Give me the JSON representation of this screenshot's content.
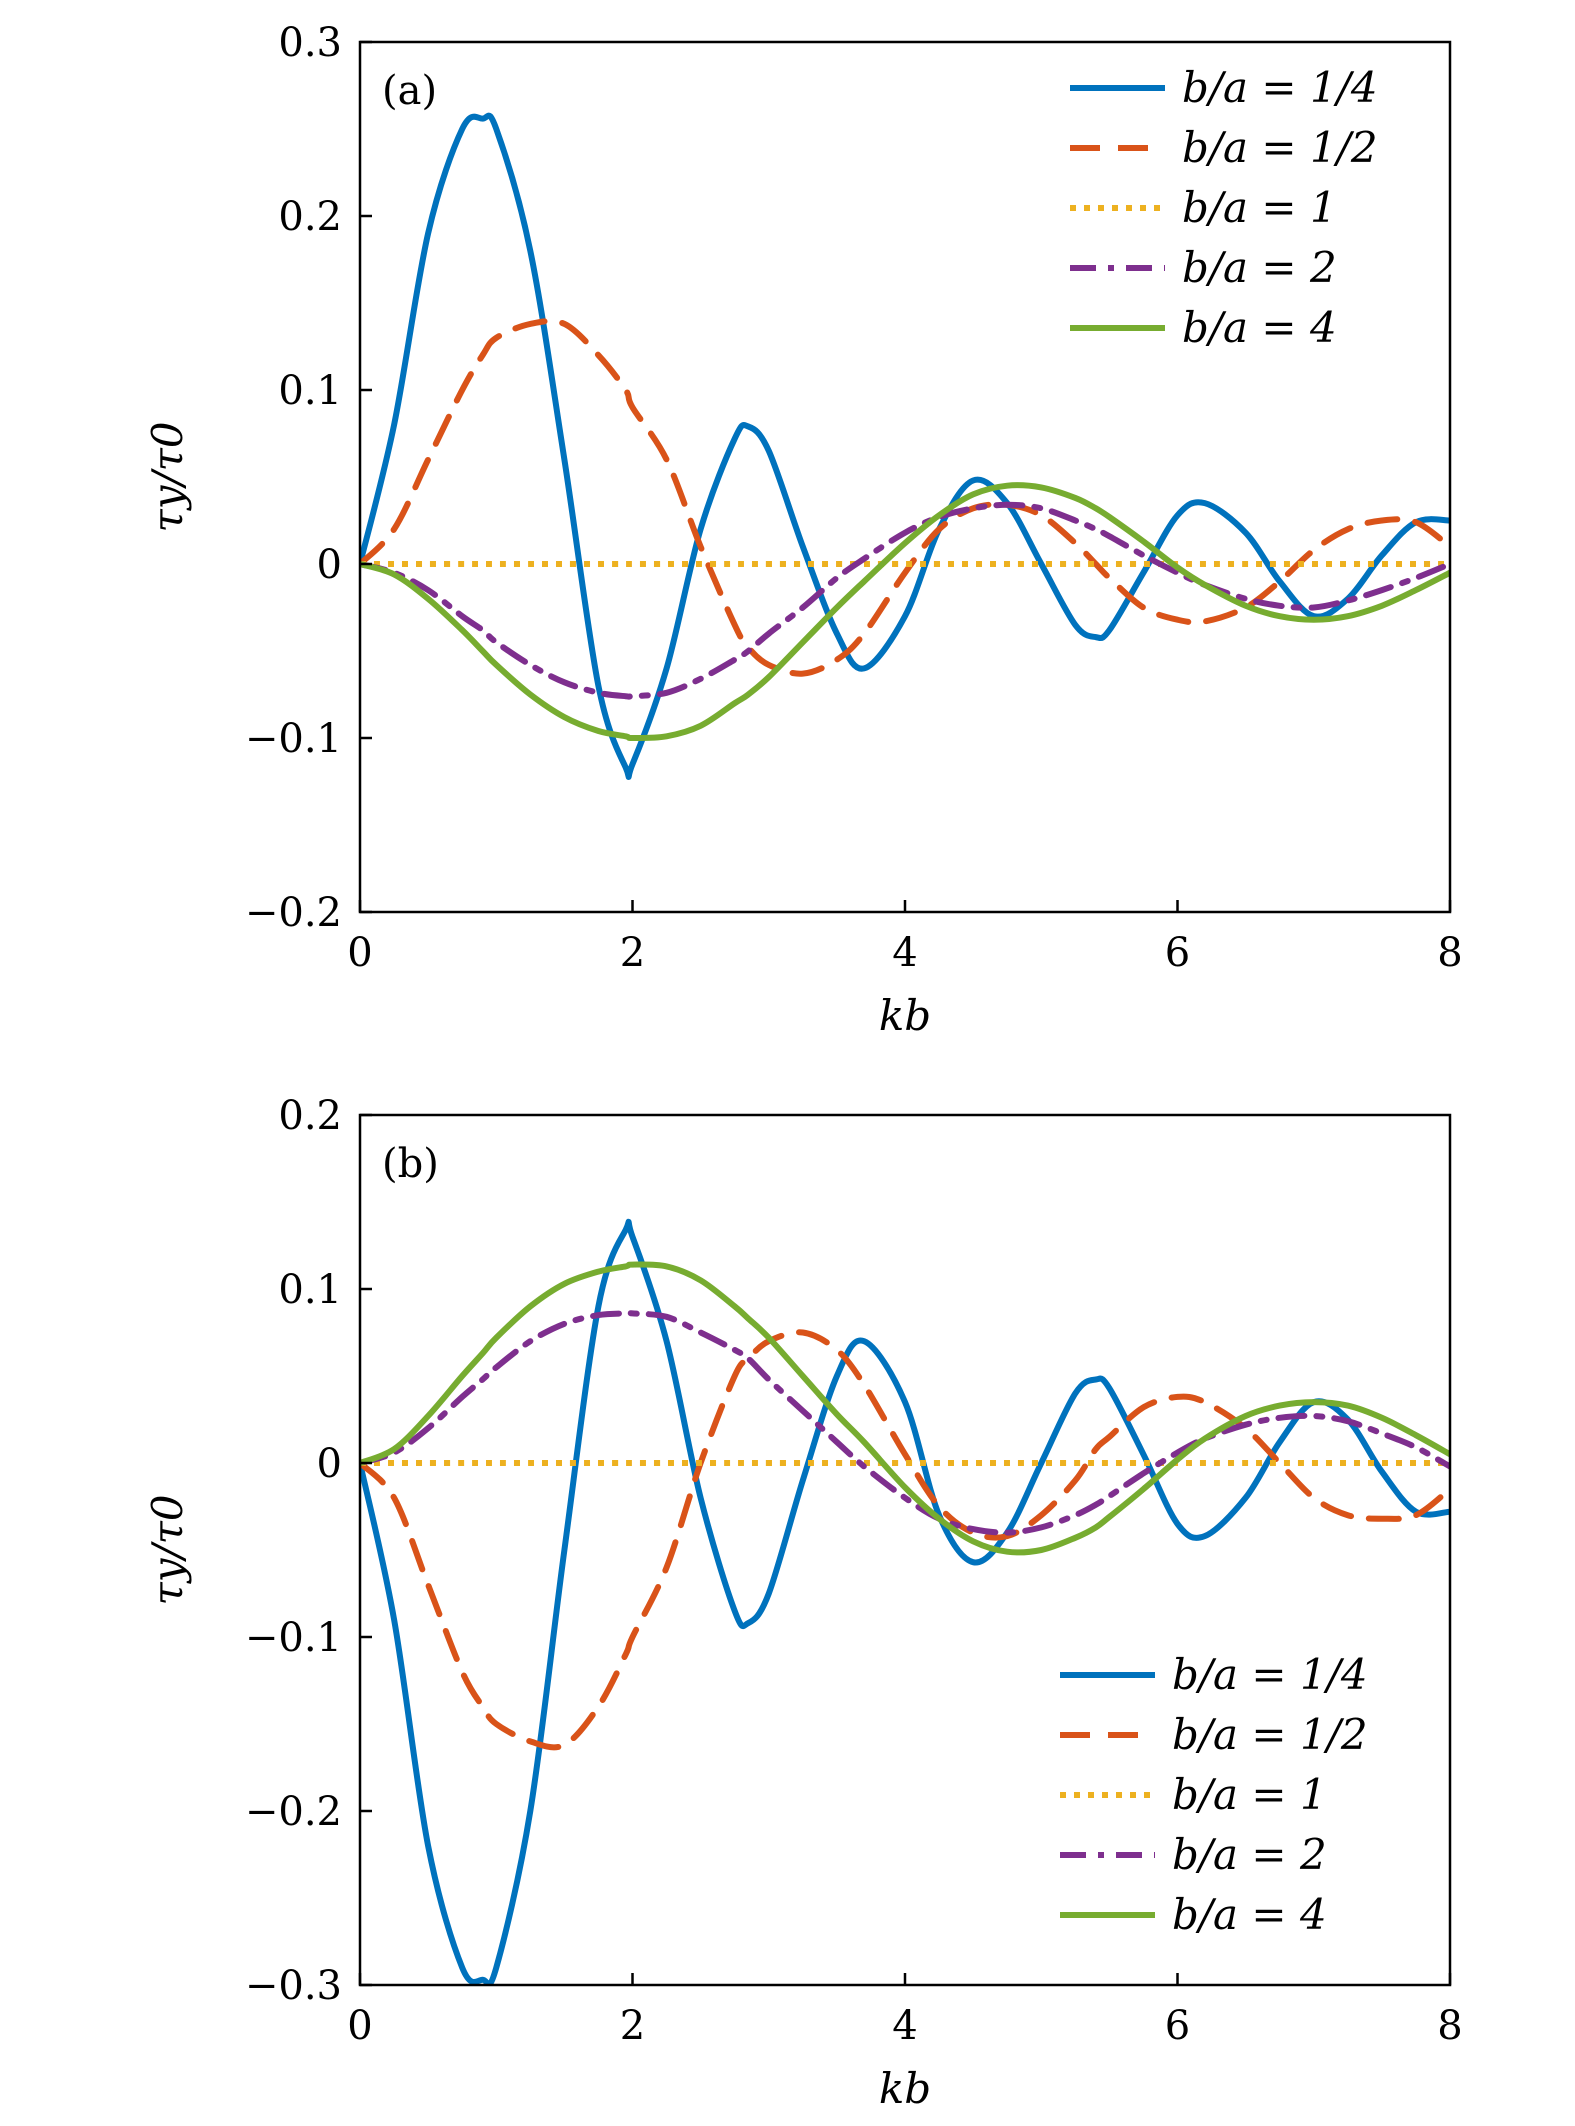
{
  "chart_data": [
    {
      "type": "line",
      "panel_label": "(a)",
      "xlabel": "kb",
      "ylabel": "τy/τ0",
      "xlim": [
        0,
        8
      ],
      "ylim": [
        -0.2,
        0.3
      ],
      "xticks": [
        0,
        2,
        4,
        6,
        8
      ],
      "xtick_labels": [
        "0",
        "2",
        "4",
        "6",
        "8"
      ],
      "yticks": [
        -0.2,
        -0.1,
        0,
        0.1,
        0.2,
        0.3
      ],
      "ytick_labels": [
        "−0.2",
        "−0.1",
        "0",
        "0.1",
        "0.2",
        "0.3"
      ],
      "legend_position": "top-right",
      "x": [
        0,
        0.25,
        0.5,
        0.75,
        0.9,
        1.0,
        1.25,
        1.5,
        1.75,
        1.95,
        2.0,
        2.25,
        2.5,
        2.75,
        2.85,
        3.0,
        3.25,
        3.5,
        3.7,
        4.0,
        4.25,
        4.5,
        4.75,
        5.0,
        5.25,
        5.4,
        5.5,
        5.75,
        6.0,
        6.2,
        6.5,
        6.75,
        7.0,
        7.25,
        7.5,
        7.75,
        8.0
      ],
      "series": [
        {
          "name": "b/a = 1/4",
          "color": "#0072BD",
          "dash": "solid",
          "values": [
            0,
            0.08,
            0.19,
            0.25,
            0.256,
            0.25,
            0.18,
            0.06,
            -0.07,
            -0.117,
            -0.115,
            -0.06,
            0.02,
            0.072,
            0.079,
            0.065,
            0.01,
            -0.04,
            -0.06,
            -0.03,
            0.02,
            0.048,
            0.035,
            0.0,
            -0.035,
            -0.042,
            -0.038,
            -0.005,
            0.028,
            0.035,
            0.018,
            -0.01,
            -0.03,
            -0.02,
            0.005,
            0.024,
            0.025
          ]
        },
        {
          "name": "b/a = 1/2",
          "color": "#D95319",
          "dash": "dashed",
          "values": [
            0,
            0.02,
            0.06,
            0.1,
            0.12,
            0.13,
            0.138,
            0.138,
            0.12,
            0.1,
            0.09,
            0.06,
            0.01,
            -0.035,
            -0.048,
            -0.058,
            -0.063,
            -0.055,
            -0.04,
            -0.005,
            0.02,
            0.032,
            0.034,
            0.028,
            0.012,
            0.0,
            -0.008,
            -0.025,
            -0.032,
            -0.033,
            -0.025,
            -0.01,
            0.008,
            0.02,
            0.025,
            0.024,
            0.01
          ]
        },
        {
          "name": "b/a = 1",
          "color": "#EDB120",
          "dash": "dotted",
          "values": [
            0,
            0,
            0,
            0,
            0,
            0,
            0,
            0,
            0,
            0,
            0,
            0,
            0,
            0,
            0,
            0,
            0,
            0,
            0,
            0,
            0,
            0,
            0,
            0,
            0,
            0,
            0,
            0,
            0,
            0,
            0,
            0,
            0,
            0,
            0,
            0,
            0
          ]
        },
        {
          "name": "b/a = 2",
          "color": "#7E2F8E",
          "dash": "dashdot",
          "values": [
            0,
            -0.005,
            -0.015,
            -0.03,
            -0.038,
            -0.045,
            -0.058,
            -0.068,
            -0.074,
            -0.076,
            -0.076,
            -0.074,
            -0.066,
            -0.055,
            -0.05,
            -0.04,
            -0.025,
            -0.008,
            0.003,
            0.018,
            0.027,
            0.032,
            0.034,
            0.032,
            0.025,
            0.02,
            0.016,
            0.005,
            -0.005,
            -0.012,
            -0.02,
            -0.024,
            -0.025,
            -0.021,
            -0.015,
            -0.008,
            0.0
          ]
        },
        {
          "name": "b/a = 4",
          "color": "#77AC30",
          "dash": "solid",
          "values": [
            0,
            -0.006,
            -0.02,
            -0.038,
            -0.05,
            -0.058,
            -0.075,
            -0.088,
            -0.096,
            -0.099,
            -0.1,
            -0.099,
            -0.093,
            -0.08,
            -0.075,
            -0.065,
            -0.045,
            -0.025,
            -0.01,
            0.012,
            0.028,
            0.04,
            0.045,
            0.044,
            0.038,
            0.032,
            0.027,
            0.013,
            -0.002,
            -0.012,
            -0.024,
            -0.03,
            -0.032,
            -0.03,
            -0.024,
            -0.015,
            -0.005
          ]
        }
      ]
    },
    {
      "type": "line",
      "panel_label": "(b)",
      "xlabel": "kb",
      "ylabel": "τy/τ0",
      "xlim": [
        0,
        8
      ],
      "ylim": [
        -0.3,
        0.2
      ],
      "xticks": [
        0,
        2,
        4,
        6,
        8
      ],
      "xtick_labels": [
        "0",
        "2",
        "4",
        "6",
        "8"
      ],
      "yticks": [
        -0.3,
        -0.2,
        -0.1,
        0,
        0.1,
        0.2
      ],
      "ytick_labels": [
        "−0.3",
        "−0.2",
        "−0.1",
        "0",
        "0.1",
        "0.2"
      ],
      "legend_position": "bottom-right",
      "x": [
        0,
        0.25,
        0.5,
        0.75,
        0.9,
        1.0,
        1.25,
        1.5,
        1.75,
        1.95,
        2.0,
        2.25,
        2.5,
        2.75,
        2.85,
        3.0,
        3.25,
        3.5,
        3.7,
        4.0,
        4.25,
        4.5,
        4.75,
        5.0,
        5.25,
        5.4,
        5.5,
        5.75,
        6.0,
        6.2,
        6.5,
        6.75,
        7.0,
        7.25,
        7.5,
        7.75,
        8.0
      ],
      "series": [
        {
          "name": "b/a = 1/4",
          "color": "#0072BD",
          "dash": "solid",
          "values": [
            0,
            -0.09,
            -0.22,
            -0.29,
            -0.297,
            -0.29,
            -0.2,
            -0.05,
            0.09,
            0.134,
            0.13,
            0.07,
            -0.02,
            -0.085,
            -0.092,
            -0.075,
            -0.01,
            0.05,
            0.07,
            0.035,
            -0.03,
            -0.057,
            -0.04,
            0.0,
            0.04,
            0.048,
            0.043,
            0.005,
            -0.035,
            -0.042,
            -0.02,
            0.012,
            0.035,
            0.025,
            -0.005,
            -0.028,
            -0.028
          ]
        },
        {
          "name": "b/a = 1/2",
          "color": "#D95319",
          "dash": "dashed",
          "values": [
            0,
            -0.02,
            -0.07,
            -0.12,
            -0.14,
            -0.15,
            -0.16,
            -0.162,
            -0.14,
            -0.11,
            -0.1,
            -0.06,
            0.0,
            0.05,
            0.06,
            0.07,
            0.075,
            0.065,
            0.045,
            0.005,
            -0.025,
            -0.04,
            -0.042,
            -0.03,
            -0.01,
            0.008,
            0.015,
            0.032,
            0.038,
            0.035,
            0.02,
            0.0,
            -0.02,
            -0.03,
            -0.032,
            -0.03,
            -0.015
          ]
        },
        {
          "name": "b/a = 1",
          "color": "#EDB120",
          "dash": "dotted",
          "values": [
            0,
            0,
            0,
            0,
            0,
            0,
            0,
            0,
            0,
            0,
            0,
            0,
            0,
            0,
            0,
            0,
            0,
            0,
            0,
            0,
            0,
            0,
            0,
            0,
            0,
            0,
            0,
            0,
            0,
            0,
            0,
            0,
            0,
            0,
            0,
            0,
            0
          ]
        },
        {
          "name": "b/a = 2",
          "color": "#7E2F8E",
          "dash": "dashdot",
          "values": [
            0,
            0.006,
            0.02,
            0.038,
            0.048,
            0.055,
            0.07,
            0.08,
            0.085,
            0.086,
            0.086,
            0.084,
            0.075,
            0.065,
            0.06,
            0.048,
            0.03,
            0.012,
            -0.002,
            -0.02,
            -0.032,
            -0.038,
            -0.04,
            -0.037,
            -0.03,
            -0.024,
            -0.019,
            -0.006,
            0.006,
            0.014,
            0.022,
            0.026,
            0.027,
            0.024,
            0.017,
            0.009,
            -0.002
          ]
        },
        {
          "name": "b/a = 4",
          "color": "#77AC30",
          "dash": "solid",
          "values": [
            0,
            0.008,
            0.027,
            0.05,
            0.063,
            0.072,
            0.09,
            0.103,
            0.11,
            0.113,
            0.114,
            0.113,
            0.105,
            0.09,
            0.083,
            0.072,
            0.05,
            0.028,
            0.012,
            -0.014,
            -0.032,
            -0.045,
            -0.051,
            -0.05,
            -0.043,
            -0.037,
            -0.031,
            -0.015,
            0.002,
            0.014,
            0.027,
            0.033,
            0.035,
            0.033,
            0.026,
            0.016,
            0.005
          ]
        }
      ]
    }
  ]
}
